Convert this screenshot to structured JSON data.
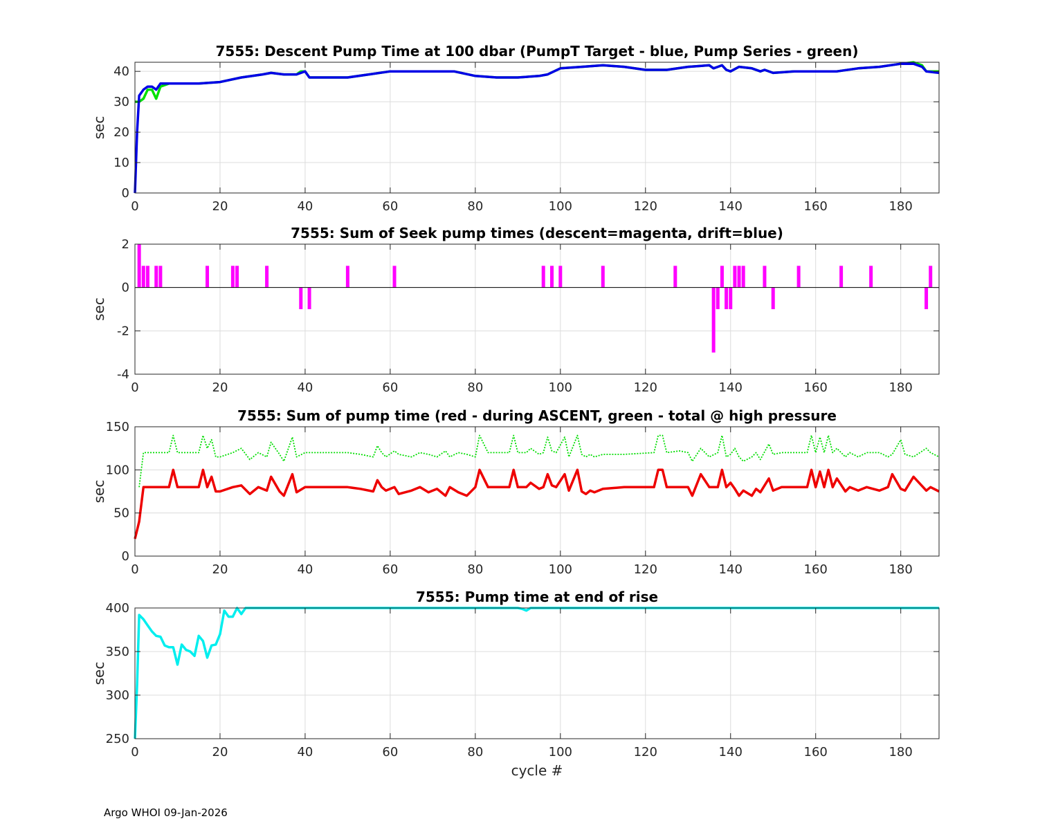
{
  "footer": "Argo WHOI 09-Jan-2026",
  "chart_data": [
    {
      "type": "line",
      "title": "7555: Descent Pump Time at 100 dbar (PumpT Target - blue, Pump Series - green)",
      "xlabel": "",
      "ylabel": "sec",
      "xlim": [
        0,
        189
      ],
      "ylim": [
        0,
        43
      ],
      "xticks": [
        0,
        20,
        40,
        60,
        80,
        100,
        120,
        140,
        160,
        180
      ],
      "yticks": [
        0,
        10,
        20,
        30,
        40
      ],
      "grid": true,
      "series": [
        {
          "name": "Pump Series",
          "color": "#00e000",
          "style": "solid",
          "x": [
            0,
            1,
            2,
            3,
            4,
            5,
            6,
            8,
            10,
            15,
            20,
            25,
            30,
            32,
            35,
            38,
            39,
            40,
            41,
            45,
            50,
            55,
            60,
            65,
            70,
            75,
            80,
            85,
            90,
            95,
            97,
            100,
            105,
            110,
            115,
            120,
            125,
            130,
            135,
            136,
            137,
            138,
            139,
            140,
            142,
            145,
            147,
            148,
            150,
            155,
            160,
            165,
            170,
            175,
            180,
            183,
            185,
            186,
            189
          ],
          "y": [
            30,
            30,
            31,
            34,
            34,
            31,
            35,
            36,
            36,
            36,
            36.5,
            38,
            39,
            39.5,
            39,
            39,
            40,
            40,
            38,
            38,
            38,
            39,
            40,
            40,
            40,
            40,
            38.5,
            38,
            38,
            38.5,
            39,
            41,
            41.5,
            42,
            41.5,
            40.5,
            40.5,
            41.5,
            42,
            41,
            41.5,
            42,
            40.5,
            40,
            41.5,
            41,
            40,
            40.5,
            39.5,
            40,
            40,
            40,
            41,
            41.5,
            42.5,
            43,
            42,
            40,
            40
          ]
        },
        {
          "name": "PumpT Target",
          "color": "#0000e6",
          "style": "solid",
          "x": [
            0,
            0.5,
            1,
            2,
            3,
            4,
            5,
            6,
            8,
            10,
            15,
            20,
            25,
            30,
            32,
            35,
            38,
            40,
            41,
            45,
            50,
            55,
            60,
            65,
            70,
            75,
            80,
            85,
            90,
            95,
            97,
            100,
            105,
            110,
            115,
            120,
            125,
            130,
            135,
            136,
            137,
            138,
            139,
            140,
            142,
            145,
            147,
            148,
            150,
            155,
            160,
            165,
            170,
            175,
            180,
            183,
            185,
            186,
            189
          ],
          "y": [
            0,
            20,
            32,
            34,
            35,
            35,
            34,
            36,
            36,
            36,
            36,
            36.5,
            38,
            39,
            39.5,
            39,
            39,
            40,
            38,
            38,
            38,
            39,
            40,
            40,
            40,
            40,
            38.5,
            38,
            38,
            38.5,
            39,
            41,
            41.5,
            42,
            41.5,
            40.5,
            40.5,
            41.5,
            42,
            41,
            41.5,
            42,
            40.5,
            40,
            41.5,
            41,
            40,
            40.5,
            39.5,
            40,
            40,
            40,
            41,
            41.5,
            42.5,
            42.5,
            41.5,
            40,
            39.5
          ]
        }
      ]
    },
    {
      "type": "bar",
      "title": "7555: Sum of Seek pump times (descent=magenta, drift=blue)",
      "xlabel": "",
      "ylabel": "sec",
      "xlim": [
        0,
        189
      ],
      "ylim": [
        -4,
        2
      ],
      "xticks": [
        0,
        20,
        40,
        60,
        80,
        100,
        120,
        140,
        160,
        180
      ],
      "yticks": [
        -4,
        -2,
        0,
        2
      ],
      "grid": true,
      "series": [
        {
          "name": "descent",
          "color": "#ff00ff",
          "x": [
            1,
            2,
            3,
            5,
            6,
            17,
            23,
            24,
            31,
            39,
            41,
            50,
            61,
            96,
            98,
            100,
            110,
            127,
            136,
            137,
            138,
            139,
            140,
            141,
            142,
            143,
            148,
            150,
            156,
            166,
            173,
            186,
            187
          ],
          "values": [
            2,
            1,
            1,
            1,
            1,
            1,
            1,
            1,
            1,
            -1,
            -1,
            1,
            1,
            1,
            1,
            1,
            1,
            1,
            -3,
            -1,
            1,
            -1,
            -1,
            1,
            1,
            1,
            1,
            -1,
            1,
            1,
            1,
            -1,
            1
          ]
        },
        {
          "name": "drift",
          "color": "#0000ff",
          "x": [],
          "values": []
        }
      ]
    },
    {
      "type": "line",
      "title": "7555: Sum of pump time (red - during ASCENT, green - total @ high pressure",
      "xlabel": "",
      "ylabel": "sec",
      "xlim": [
        0,
        189
      ],
      "ylim": [
        0,
        150
      ],
      "xticks": [
        0,
        20,
        40,
        60,
        80,
        100,
        120,
        140,
        160,
        180
      ],
      "yticks": [
        0,
        50,
        100,
        150
      ],
      "grid": true,
      "series": [
        {
          "name": "total @ high pressure",
          "color": "#00dd00",
          "style": "dotted",
          "x": [
            1,
            2,
            8,
            9,
            10,
            15,
            16,
            17,
            18,
            19,
            20,
            23,
            25,
            27,
            29,
            31,
            32,
            34,
            35,
            37,
            38,
            40,
            45,
            50,
            53,
            56,
            57,
            58,
            59,
            61,
            62,
            65,
            67,
            69,
            71,
            73,
            74,
            76,
            78,
            80,
            81,
            83,
            85,
            87,
            88,
            89,
            90,
            91,
            92,
            93,
            95,
            96,
            97,
            98,
            99,
            101,
            102,
            104,
            105,
            106,
            107,
            108,
            110,
            115,
            122,
            123,
            124,
            125,
            128,
            130,
            131,
            133,
            135,
            137,
            138,
            139,
            140,
            141,
            142,
            143,
            145,
            146,
            147,
            149,
            150,
            152,
            155,
            158,
            159,
            160,
            161,
            162,
            163,
            164,
            165,
            167,
            168,
            170,
            172,
            175,
            177,
            178,
            180,
            181,
            183,
            186,
            187,
            189
          ],
          "y": [
            80,
            120,
            120,
            140,
            120,
            120,
            140,
            125,
            135,
            115,
            115,
            120,
            125,
            112,
            120,
            115,
            132,
            118,
            110,
            138,
            115,
            120,
            120,
            120,
            118,
            115,
            128,
            120,
            115,
            122,
            118,
            115,
            120,
            118,
            115,
            122,
            115,
            120,
            118,
            115,
            140,
            120,
            120,
            120,
            120,
            140,
            120,
            120,
            120,
            125,
            118,
            120,
            138,
            122,
            120,
            138,
            115,
            140,
            118,
            115,
            118,
            115,
            118,
            118,
            120,
            140,
            140,
            120,
            122,
            120,
            110,
            125,
            115,
            120,
            140,
            115,
            118,
            125,
            115,
            110,
            115,
            120,
            112,
            130,
            118,
            120,
            120,
            120,
            140,
            120,
            138,
            120,
            140,
            120,
            125,
            115,
            120,
            115,
            120,
            120,
            115,
            118,
            135,
            118,
            115,
            125,
            120,
            115
          ]
        },
        {
          "name": "during ASCENT",
          "color": "#ee0000",
          "style": "solid",
          "x": [
            0,
            1,
            2,
            8,
            9,
            10,
            15,
            16,
            17,
            18,
            19,
            20,
            23,
            25,
            27,
            29,
            31,
            32,
            34,
            35,
            37,
            38,
            40,
            45,
            50,
            53,
            56,
            57,
            58,
            59,
            61,
            62,
            65,
            67,
            69,
            71,
            73,
            74,
            76,
            78,
            80,
            81,
            83,
            85,
            87,
            88,
            89,
            90,
            91,
            92,
            93,
            95,
            96,
            97,
            98,
            99,
            101,
            102,
            104,
            105,
            106,
            107,
            108,
            110,
            115,
            122,
            123,
            124,
            125,
            128,
            130,
            131,
            133,
            135,
            137,
            138,
            139,
            140,
            141,
            142,
            143,
            145,
            146,
            147,
            149,
            150,
            152,
            155,
            158,
            159,
            160,
            161,
            162,
            163,
            164,
            165,
            167,
            168,
            170,
            172,
            175,
            177,
            178,
            180,
            181,
            183,
            186,
            187,
            189
          ],
          "y": [
            20,
            40,
            80,
            80,
            100,
            80,
            80,
            100,
            80,
            92,
            75,
            75,
            80,
            82,
            72,
            80,
            76,
            92,
            75,
            70,
            95,
            74,
            80,
            80,
            80,
            78,
            75,
            88,
            80,
            76,
            80,
            72,
            76,
            80,
            74,
            78,
            70,
            80,
            74,
            70,
            80,
            100,
            80,
            80,
            80,
            80,
            100,
            80,
            80,
            80,
            85,
            78,
            80,
            95,
            82,
            80,
            95,
            76,
            100,
            75,
            72,
            76,
            74,
            78,
            80,
            80,
            100,
            100,
            80,
            80,
            80,
            70,
            95,
            80,
            80,
            100,
            80,
            85,
            78,
            70,
            76,
            70,
            78,
            74,
            90,
            76,
            80,
            80,
            80,
            100,
            80,
            98,
            80,
            100,
            80,
            90,
            75,
            80,
            76,
            80,
            76,
            80,
            95,
            78,
            76,
            92,
            76,
            80,
            75
          ]
        }
      ]
    },
    {
      "type": "line",
      "title": "7555: Pump time at end of rise",
      "xlabel": "cycle #",
      "ylabel": "sec",
      "xlim": [
        0,
        189
      ],
      "ylim": [
        250,
        400
      ],
      "xticks": [
        0,
        20,
        40,
        60,
        80,
        100,
        120,
        140,
        160,
        180
      ],
      "yticks": [
        250,
        300,
        350,
        400
      ],
      "grid": true,
      "series": [
        {
          "name": "Pump time at end of rise",
          "color": "#00eeee",
          "style": "solid",
          "x": [
            0,
            0.5,
            1,
            2,
            3,
            4,
            5,
            6,
            7,
            8,
            9,
            10,
            11,
            12,
            13,
            14,
            15,
            16,
            17,
            18,
            19,
            20,
            21,
            22,
            23,
            24,
            25,
            26,
            90,
            91,
            92,
            93,
            94,
            189
          ],
          "y": [
            250,
            312,
            392,
            387,
            380,
            373,
            368,
            367,
            357,
            355,
            355,
            335,
            358,
            352,
            350,
            345,
            368,
            362,
            343,
            357,
            358,
            370,
            397,
            390,
            390,
            400,
            393,
            400,
            400,
            399,
            397,
            400,
            400,
            400
          ]
        }
      ]
    }
  ]
}
